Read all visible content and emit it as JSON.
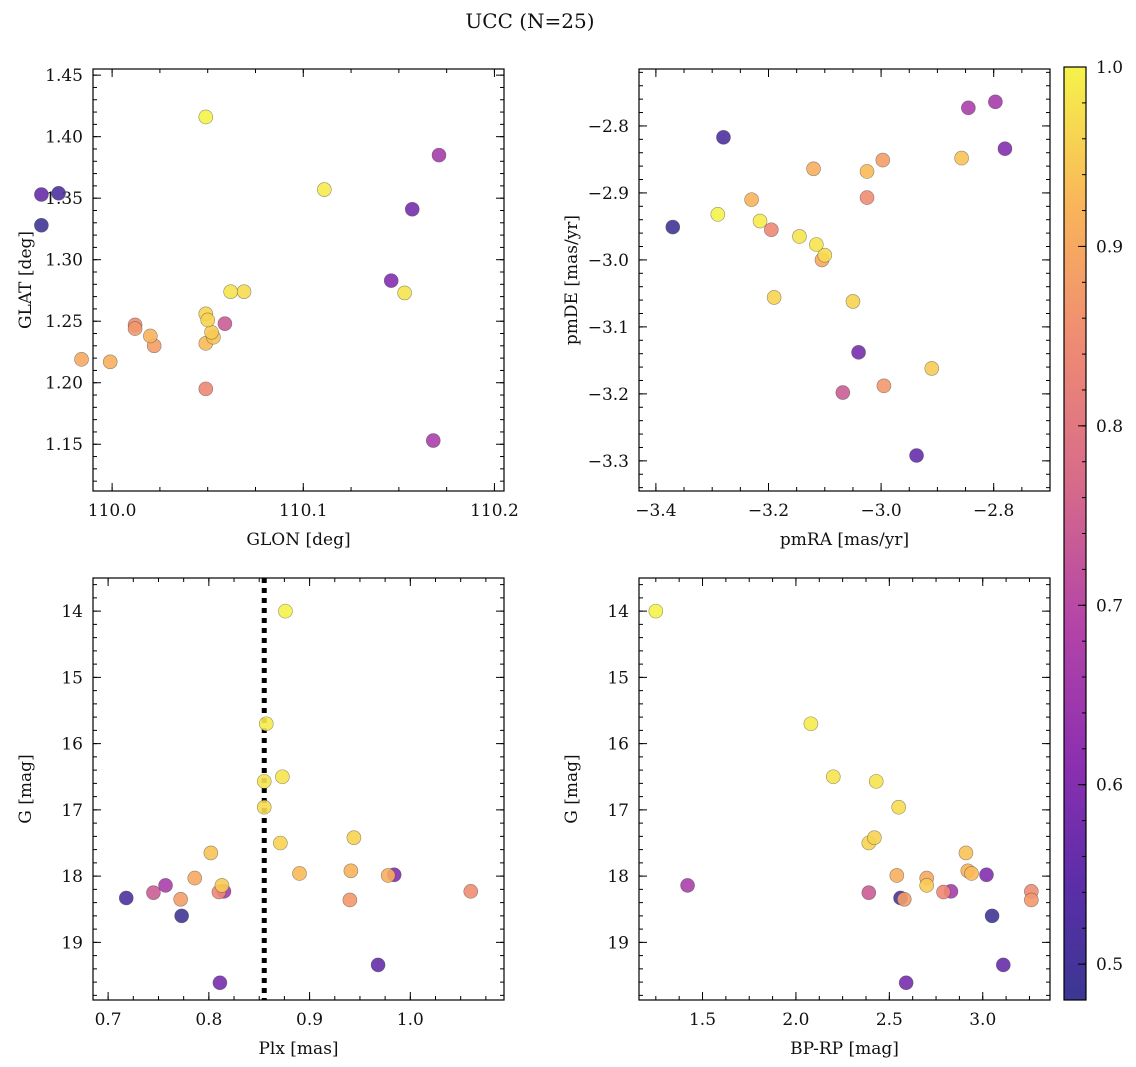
{
  "suptitle": "UCC (N=25)",
  "chart_data": [
    {
      "type": "scatter",
      "id": "p1",
      "xlabel": "GLON [deg]",
      "ylabel": "GLAT [deg]",
      "xlim": [
        109.99,
        110.205
      ],
      "ylim": [
        1.112,
        1.455
      ],
      "xticks": [
        110.0,
        110.1,
        110.2
      ],
      "xtick_labels": [
        "110.0",
        "110.1",
        "110.2"
      ],
      "yticks": [
        1.15,
        1.2,
        1.25,
        1.3,
        1.35,
        1.4,
        1.45
      ],
      "ytick_labels": [
        "1.15",
        "1.20",
        "1.25",
        "1.30",
        "1.35",
        "1.40",
        "1.45"
      ],
      "x": [
        110.049,
        110.111,
        110.153,
        110.062,
        110.069,
        110.049,
        110.05,
        110.052,
        110.053,
        110.049,
        110.02,
        109.999,
        109.984,
        110.022,
        110.012,
        110.012,
        110.049,
        110.059,
        110.168,
        110.171,
        110.146,
        110.157,
        109.963,
        109.972,
        109.963
      ],
      "y": [
        1.416,
        1.357,
        1.273,
        1.274,
        1.274,
        1.256,
        1.251,
        1.241,
        1.237,
        1.232,
        1.238,
        1.217,
        1.219,
        1.23,
        1.244,
        1.247,
        1.195,
        1.248,
        1.153,
        1.385,
        1.283,
        1.341,
        1.353,
        1.354,
        1.328
      ]
    },
    {
      "type": "scatter",
      "id": "p2",
      "xlabel": "pmRA [mas/yr]",
      "ylabel": "pmDE [mas/yr]",
      "xlim": [
        -3.43,
        -2.7
      ],
      "ylim": [
        -3.345,
        -2.715
      ],
      "xticks": [
        -3.4,
        -3.2,
        -3.0,
        -2.8
      ],
      "xtick_labels": [
        "−3.4",
        "−3.2",
        "−3.0",
        "−2.8"
      ],
      "yticks": [
        -3.3,
        -3.2,
        -3.1,
        -3.0,
        -2.9,
        -2.8
      ],
      "ytick_labels": [
        "−3.3",
        "−3.2",
        "−3.1",
        "−3.0",
        "−2.9",
        "−2.8"
      ],
      "x": [
        -3.29,
        -3.215,
        -3.145,
        -3.115,
        -3.1,
        -3.19,
        -3.05,
        -2.91,
        -2.857,
        -3.025,
        -3.23,
        -3.12,
        -3.105,
        -2.997,
        -2.995,
        -3.025,
        -3.195,
        -3.068,
        -2.845,
        -2.797,
        -2.78,
        -3.04,
        -2.937,
        -3.28,
        -3.37
      ],
      "y": [
        -2.932,
        -2.942,
        -2.965,
        -2.977,
        -2.993,
        -3.056,
        -3.062,
        -3.162,
        -2.848,
        -2.868,
        -2.91,
        -2.864,
        -3.0,
        -2.851,
        -3.188,
        -2.907,
        -2.955,
        -3.198,
        -2.773,
        -2.764,
        -2.834,
        -3.138,
        -3.292,
        -2.817,
        -2.951
      ]
    },
    {
      "type": "scatter",
      "id": "p3",
      "xlabel": "Plx [mas]",
      "ylabel": "G [mag]",
      "xlim": [
        0.685,
        1.093
      ],
      "ylim": [
        19.87,
        13.5
      ],
      "xticks": [
        0.7,
        0.8,
        0.9,
        1.0
      ],
      "xtick_labels": [
        "0.7",
        "0.8",
        "0.9",
        "1.0"
      ],
      "yticks": [
        14,
        15,
        16,
        17,
        18,
        19
      ],
      "ytick_labels": [
        "14",
        "15",
        "16",
        "17",
        "18",
        "19"
      ],
      "vline": 0.855,
      "x": [
        0.876,
        0.857,
        0.855,
        0.873,
        0.855,
        0.871,
        0.944,
        0.813,
        0.802,
        0.89,
        0.941,
        0.978,
        0.786,
        0.772,
        0.94,
        1.06,
        0.81,
        0.745,
        0.757,
        0.815,
        0.984,
        0.811,
        0.968,
        0.718,
        0.773
      ],
      "y": [
        14.0,
        15.7,
        16.57,
        16.5,
        16.96,
        17.5,
        17.42,
        18.14,
        17.65,
        17.96,
        17.92,
        17.99,
        18.03,
        18.35,
        18.36,
        18.23,
        18.24,
        18.25,
        18.14,
        18.23,
        17.98,
        19.61,
        19.34,
        18.33,
        18.6
      ]
    },
    {
      "type": "scatter",
      "id": "p4",
      "xlabel": "BP-RP [mag]",
      "ylabel": "G [mag]",
      "xlim": [
        1.16,
        3.36
      ],
      "ylim": [
        19.87,
        13.5
      ],
      "xticks": [
        1.5,
        2.0,
        2.5,
        3.0
      ],
      "xtick_labels": [
        "1.5",
        "2.0",
        "2.5",
        "3.0"
      ],
      "yticks": [
        14,
        15,
        16,
        17,
        18,
        19
      ],
      "ytick_labels": [
        "14",
        "15",
        "16",
        "17",
        "18",
        "19"
      ],
      "x": [
        1.25,
        2.08,
        2.43,
        2.2,
        2.55,
        2.39,
        2.42,
        2.7,
        2.91,
        2.94,
        2.92,
        2.54,
        2.7,
        2.58,
        3.26,
        3.26,
        2.79,
        2.39,
        1.42,
        2.83,
        3.02,
        2.59,
        3.11,
        2.56,
        3.05
      ],
      "y": [
        14.0,
        15.7,
        16.57,
        16.5,
        16.96,
        17.5,
        17.42,
        18.14,
        17.65,
        17.96,
        17.92,
        17.99,
        18.03,
        18.35,
        18.36,
        18.23,
        18.24,
        18.25,
        18.14,
        18.23,
        17.98,
        19.61,
        19.34,
        18.33,
        18.6
      ]
    }
  ],
  "membership_probability": [
    1.0,
    0.99,
    0.98,
    0.98,
    0.97,
    0.96,
    0.96,
    0.95,
    0.94,
    0.93,
    0.92,
    0.91,
    0.9,
    0.88,
    0.87,
    0.85,
    0.84,
    0.74,
    0.67,
    0.66,
    0.6,
    0.58,
    0.56,
    0.52,
    0.49
  ],
  "colorbar": {
    "min": 0.48,
    "max": 1.0,
    "ticks": [
      0.5,
      0.6,
      0.7,
      0.8,
      0.9,
      1.0
    ],
    "tick_labels": [
      "0.5",
      "0.6",
      "0.7",
      "0.8",
      "0.9",
      "1.0"
    ],
    "colormap": "plasma"
  }
}
